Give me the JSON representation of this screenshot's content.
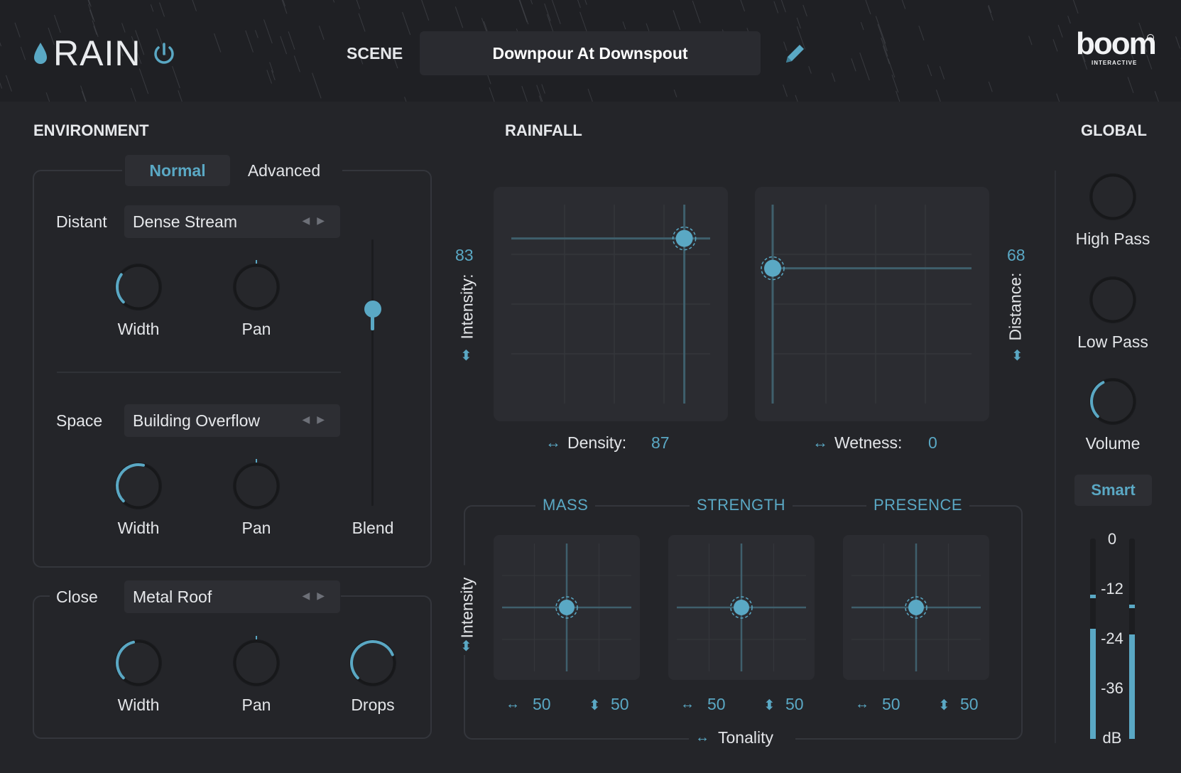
{
  "header": {
    "app_title": "RAIN",
    "scene_label": "SCENE",
    "scene_name": "Downpour At Downspout",
    "brand": "boom",
    "brand_sub": "INTERACTIVE"
  },
  "environment": {
    "title": "ENVIRONMENT",
    "tabs": [
      {
        "label": "Normal",
        "active": true
      },
      {
        "label": "Advanced",
        "active": false
      }
    ],
    "distant": {
      "label": "Distant",
      "preset": "Dense Stream",
      "width_label": "Width",
      "pan_label": "Pan",
      "width_value": 0.3,
      "pan_value": 0.5
    },
    "space": {
      "label": "Space",
      "preset": "Building Overflow",
      "width_label": "Width",
      "pan_label": "Pan",
      "width_value": 0.55,
      "pan_value": 0.5
    },
    "blend": {
      "label": "Blend",
      "value": 0.23
    },
    "close": {
      "label": "Close",
      "preset": "Metal Roof",
      "width_label": "Width",
      "pan_label": "Pan",
      "drops_label": "Drops",
      "width_value": 0.45,
      "pan_value": 0.5,
      "drops_value": 0.75
    }
  },
  "rainfall": {
    "title": "RAINFALL",
    "intensity_label": "Intensity:",
    "intensity_value": "83",
    "distance_label": "Distance:",
    "distance_value": "68",
    "density_label": "Density:",
    "density_value": "87",
    "wetness_label": "Wetness:",
    "wetness_value": "0",
    "pad1": {
      "x": 87,
      "y": 83
    },
    "pad2": {
      "x": 0,
      "y": 68
    },
    "groups": [
      {
        "title": "MASS",
        "h_value": "50",
        "v_value": "50"
      },
      {
        "title": "STRENGTH",
        "h_value": "50",
        "v_value": "50"
      },
      {
        "title": "PRESENCE",
        "h_value": "50",
        "v_value": "50"
      }
    ],
    "group_intensity_label": "Intensity",
    "tonality_label": "Tonality"
  },
  "global": {
    "title": "GLOBAL",
    "high_pass_label": "High Pass",
    "low_pass_label": "Low Pass",
    "volume_label": "Volume",
    "volume_value": 0.4,
    "smart_label": "Smart",
    "meter": {
      "scale": [
        "0",
        "-12",
        "-24",
        "-36",
        "dB"
      ],
      "left_level": 0.55,
      "right_level": 0.52,
      "left_peak": 0.72,
      "right_peak": 0.67
    }
  },
  "colors": {
    "accent": "#5aa8c4",
    "background": "#242529",
    "header": "#1f2024",
    "panel": "#2b2c31"
  },
  "icons": [
    "drop-icon",
    "power-icon",
    "pencil-icon",
    "arrow-left-icon",
    "arrow-right-icon",
    "horizontal-arrows-icon",
    "vertical-arrows-icon"
  ]
}
